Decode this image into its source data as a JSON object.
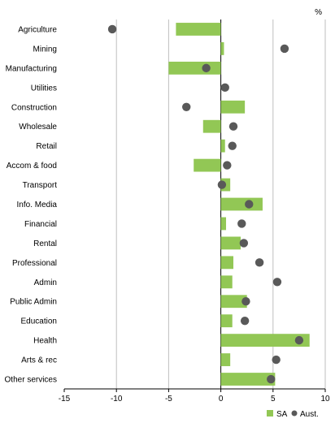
{
  "chart_data": {
    "type": "bar",
    "orientation": "horizontal",
    "unit": "%",
    "categories": [
      "Agriculture",
      "Mining",
      "Manufacturing",
      "Utilities",
      "Construction",
      "Wholesale",
      "Retail",
      "Accom & food",
      "Transport",
      "Info. Media",
      "Financial",
      "Rental",
      "Professional",
      "Admin",
      "Public Admin",
      "Education",
      "Health",
      "Arts & rec",
      "Other services"
    ],
    "series": [
      {
        "name": "SA",
        "mark": "bar",
        "color": "#92c755",
        "values": [
          -4.3,
          0.3,
          -5.0,
          0.0,
          2.3,
          -1.7,
          0.4,
          -2.6,
          0.9,
          4.0,
          0.5,
          1.9,
          1.2,
          1.1,
          2.5,
          1.1,
          8.5,
          0.9,
          5.2
        ]
      },
      {
        "name": "Aust.",
        "mark": "dot",
        "color": "#595959",
        "values": [
          -10.4,
          6.1,
          -1.4,
          0.4,
          -3.3,
          1.2,
          1.1,
          0.6,
          0.1,
          2.7,
          2.0,
          2.2,
          3.7,
          5.4,
          2.4,
          2.3,
          7.5,
          5.3,
          4.8
        ]
      }
    ],
    "xlim": [
      -15,
      10
    ],
    "xticks": [
      -15,
      -10,
      -5,
      0,
      5,
      10
    ],
    "grid": "vertical",
    "legend": "bottom-right",
    "title": "",
    "xlabel": "",
    "ylabel": ""
  }
}
